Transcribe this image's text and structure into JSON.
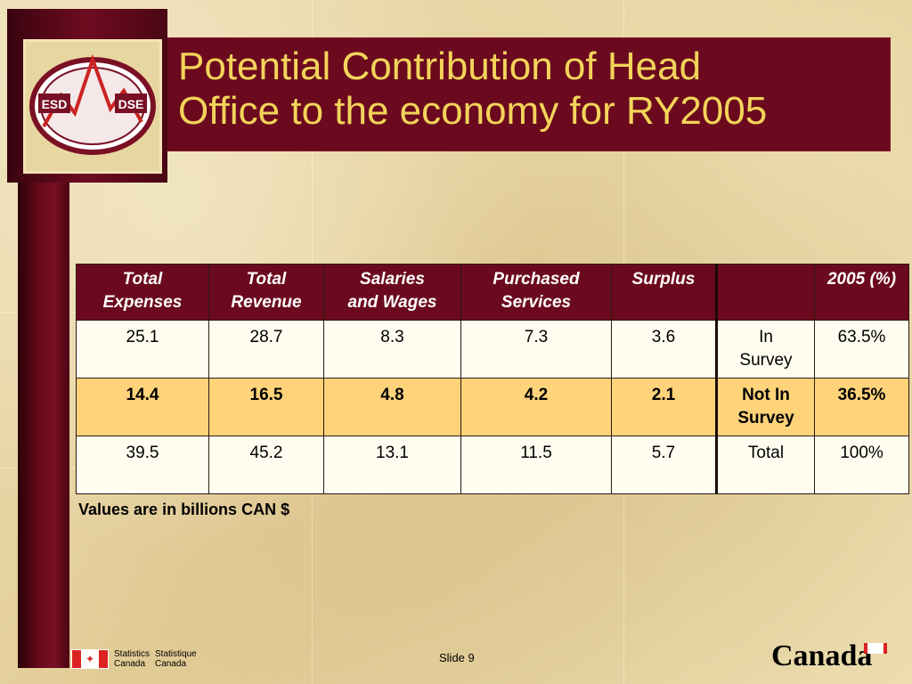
{
  "title": "Potential Contribution of Head\nOffice to the economy for RY2005",
  "logo": {
    "left_text": "ESD",
    "right_text": "DSE"
  },
  "table": {
    "headers": [
      "Total\nExpenses",
      "Total\nRevenue",
      "Salaries\nand Wages",
      "Purchased\nServices",
      "Surplus",
      "",
      "2005 (%)"
    ],
    "rows": [
      [
        "25.1",
        "28.7",
        "8.3",
        "7.3",
        "3.6",
        "In\nSurvey",
        "63.5%"
      ],
      [
        "14.4",
        "16.5",
        "4.8",
        "4.2",
        "2.1",
        "Not In\nSurvey",
        "36.5%"
      ],
      [
        "39.5",
        "45.2",
        "13.1",
        "11.5",
        "5.7",
        "Total",
        "100%"
      ]
    ]
  },
  "note": "Values are in billions CAN $",
  "footer": {
    "statcan_en": "Statistics\nCanada",
    "statcan_fr": "Statistique\nCanada",
    "slide_label": "Slide 9",
    "wordmark": "Canada"
  },
  "colors": {
    "banner": "#6b0a1e",
    "title": "#f3d45a",
    "highlight_row": "#ffd37a"
  }
}
